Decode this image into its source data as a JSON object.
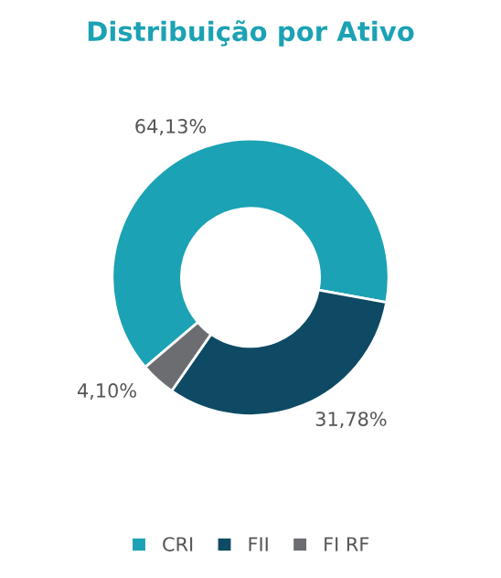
{
  "chart_data": {
    "type": "donut",
    "title": "Distribuição por Ativo",
    "categories": [
      "CRI",
      "FII",
      "FI RF"
    ],
    "values": [
      64.13,
      31.78,
      4.1
    ],
    "colors": [
      "#1ba2b4",
      "#0e4a64",
      "#6b6d70"
    ],
    "value_labels": [
      "64,13%",
      "31,78%",
      "4,10%"
    ],
    "legend": "bottom"
  }
}
